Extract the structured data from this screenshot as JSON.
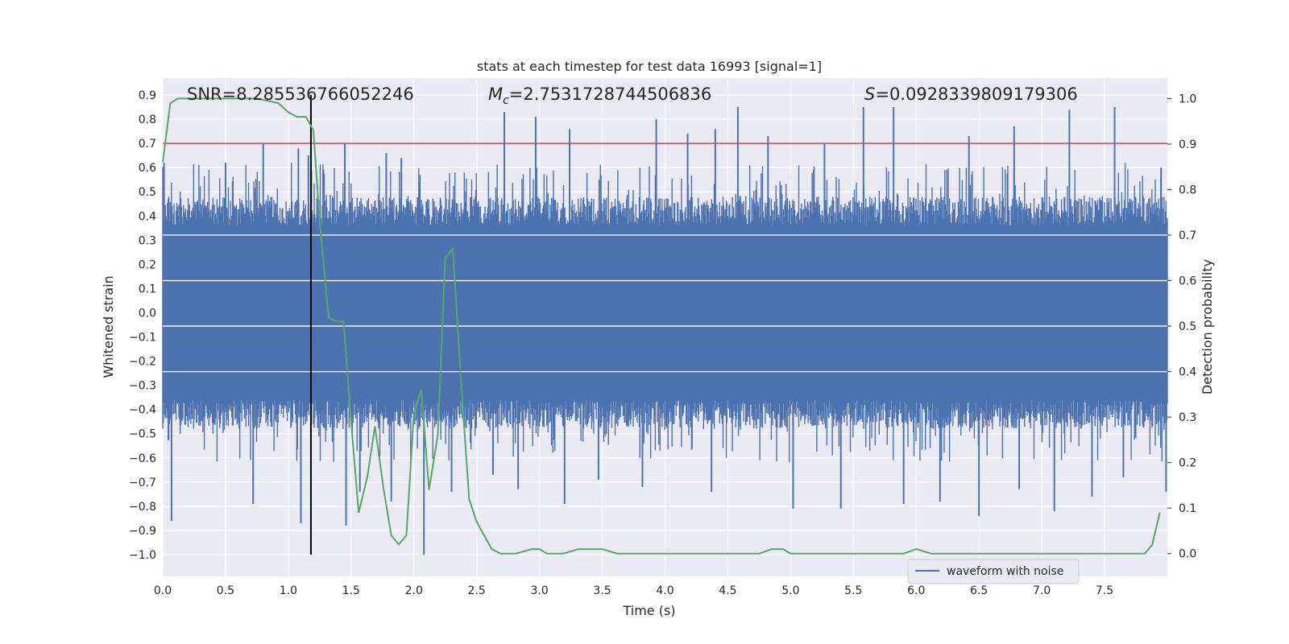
{
  "chart_data": {
    "type": "line",
    "title": "stats at each timestep for test data 16993 [signal=1]",
    "xlabel": "Time (s)",
    "ylabel": "Whitened strain",
    "y2label": "Detection probability",
    "xlim": [
      0.0,
      8.0
    ],
    "ylim": [
      -1.09,
      0.97
    ],
    "y2lim": [
      -0.05,
      1.045
    ],
    "xticks": [
      "0.0",
      "0.5",
      "1.0",
      "1.5",
      "2.0",
      "2.5",
      "3.0",
      "3.5",
      "4.0",
      "4.5",
      "5.0",
      "5.5",
      "6.0",
      "6.5",
      "7.0",
      "7.5"
    ],
    "yticks": [
      "0.9",
      "0.8",
      "0.7",
      "0.6",
      "0.5",
      "0.4",
      "0.3",
      "0.2",
      "0.1",
      "0.0",
      "−0.1",
      "−0.2",
      "−0.3",
      "−0.4",
      "−0.5",
      "−0.6",
      "−0.7",
      "−0.8",
      "−0.9",
      "−1.0"
    ],
    "y2ticks": [
      "1.0",
      "0.9",
      "0.8",
      "0.7",
      "0.6",
      "0.5",
      "0.4",
      "0.3",
      "0.2",
      "0.1",
      "0.0"
    ],
    "grid": true,
    "legend": {
      "placement": "lower-right",
      "entries": [
        "waveform with noise"
      ]
    },
    "annotations": {
      "snr": "SNR=8.285536766052246",
      "mc_symbol": "M",
      "mc_sub": "c",
      "mc_value": "=2.7531728744506836",
      "s_symbol": "S",
      "s_value": "=0.0928339809179306"
    },
    "threshold": {
      "y": 0.7,
      "color": "#c44e52"
    },
    "marker_x": 1.18,
    "series": [
      {
        "name": "waveform with noise",
        "axis": "left",
        "color": "#4c72b0",
        "envelope": {
          "band_top": 0.32,
          "band_bottom": -0.24,
          "seed": 16993
        },
        "peaks_up": [
          [
            0.01,
            0.62
          ],
          [
            0.5,
            0.62
          ],
          [
            0.8,
            0.7
          ],
          [
            1.08,
            0.68
          ],
          [
            1.16,
            0.65
          ],
          [
            1.45,
            0.7
          ],
          [
            1.78,
            0.66
          ],
          [
            1.9,
            0.64
          ],
          [
            2.72,
            0.83
          ],
          [
            2.97,
            0.81
          ],
          [
            3.24,
            0.76
          ],
          [
            3.93,
            0.8
          ],
          [
            4.18,
            0.74
          ],
          [
            4.4,
            0.76
          ],
          [
            4.58,
            0.85
          ],
          [
            4.82,
            0.73
          ],
          [
            5.27,
            0.7
          ],
          [
            5.58,
            0.85
          ],
          [
            5.82,
            0.85
          ],
          [
            6.42,
            0.73
          ],
          [
            6.78,
            0.77
          ],
          [
            7.22,
            0.84
          ],
          [
            7.58,
            0.85
          ],
          [
            7.95,
            0.6
          ]
        ],
        "peaks_down": [
          [
            0.07,
            -0.86
          ],
          [
            0.72,
            -0.79
          ],
          [
            1.1,
            -0.87
          ],
          [
            1.46,
            -0.88
          ],
          [
            1.57,
            -0.74
          ],
          [
            1.82,
            -0.78
          ],
          [
            2.08,
            -1.0
          ],
          [
            2.3,
            -0.74
          ],
          [
            2.63,
            -0.67
          ],
          [
            2.83,
            -0.73
          ],
          [
            3.2,
            -0.79
          ],
          [
            3.47,
            -0.69
          ],
          [
            3.82,
            -0.72
          ],
          [
            4.37,
            -0.74
          ],
          [
            5.02,
            -0.81
          ],
          [
            5.4,
            -0.81
          ],
          [
            5.9,
            -0.79
          ],
          [
            6.19,
            -0.78
          ],
          [
            6.5,
            -0.84
          ],
          [
            6.82,
            -0.73
          ],
          [
            7.1,
            -0.82
          ],
          [
            7.4,
            -0.76
          ],
          [
            7.65,
            -0.68
          ],
          [
            7.99,
            -0.74
          ]
        ]
      },
      {
        "name": "detection probability",
        "axis": "right",
        "color": "#55a868",
        "x": [
          0.0,
          0.06,
          0.12,
          0.25,
          0.5,
          0.75,
          0.92,
          1.0,
          1.07,
          1.14,
          1.2,
          1.25,
          1.32,
          1.38,
          1.44,
          1.5,
          1.56,
          1.63,
          1.69,
          1.76,
          1.82,
          1.88,
          1.94,
          2.0,
          2.06,
          2.12,
          2.19,
          2.25,
          2.31,
          2.38,
          2.44,
          2.5,
          2.56,
          2.62,
          2.69,
          2.81,
          2.94,
          3.0,
          3.06,
          3.19,
          3.31,
          3.38,
          3.5,
          3.62,
          3.75,
          4.0,
          4.25,
          4.5,
          4.75,
          4.85,
          4.94,
          5.0,
          5.25,
          5.5,
          5.75,
          5.9,
          6.0,
          6.12,
          6.25,
          6.5,
          7.0,
          7.25,
          7.5,
          7.75,
          7.82,
          7.88,
          7.94
        ],
        "y": [
          0.86,
          0.99,
          1.0,
          1.0,
          1.0,
          1.0,
          0.99,
          0.97,
          0.96,
          0.96,
          0.93,
          0.73,
          0.52,
          0.51,
          0.51,
          0.29,
          0.09,
          0.17,
          0.28,
          0.14,
          0.04,
          0.02,
          0.04,
          0.31,
          0.36,
          0.14,
          0.26,
          0.65,
          0.67,
          0.36,
          0.12,
          0.07,
          0.04,
          0.01,
          0.0,
          0.0,
          0.01,
          0.01,
          0.0,
          0.0,
          0.01,
          0.01,
          0.01,
          0.0,
          0.0,
          0.0,
          0.0,
          0.0,
          0.0,
          0.01,
          0.01,
          0.0,
          0.0,
          0.0,
          0.0,
          0.0,
          0.01,
          0.0,
          0.0,
          0.0,
          0.0,
          0.0,
          0.0,
          0.0,
          0.0,
          0.02,
          0.09
        ]
      }
    ]
  }
}
